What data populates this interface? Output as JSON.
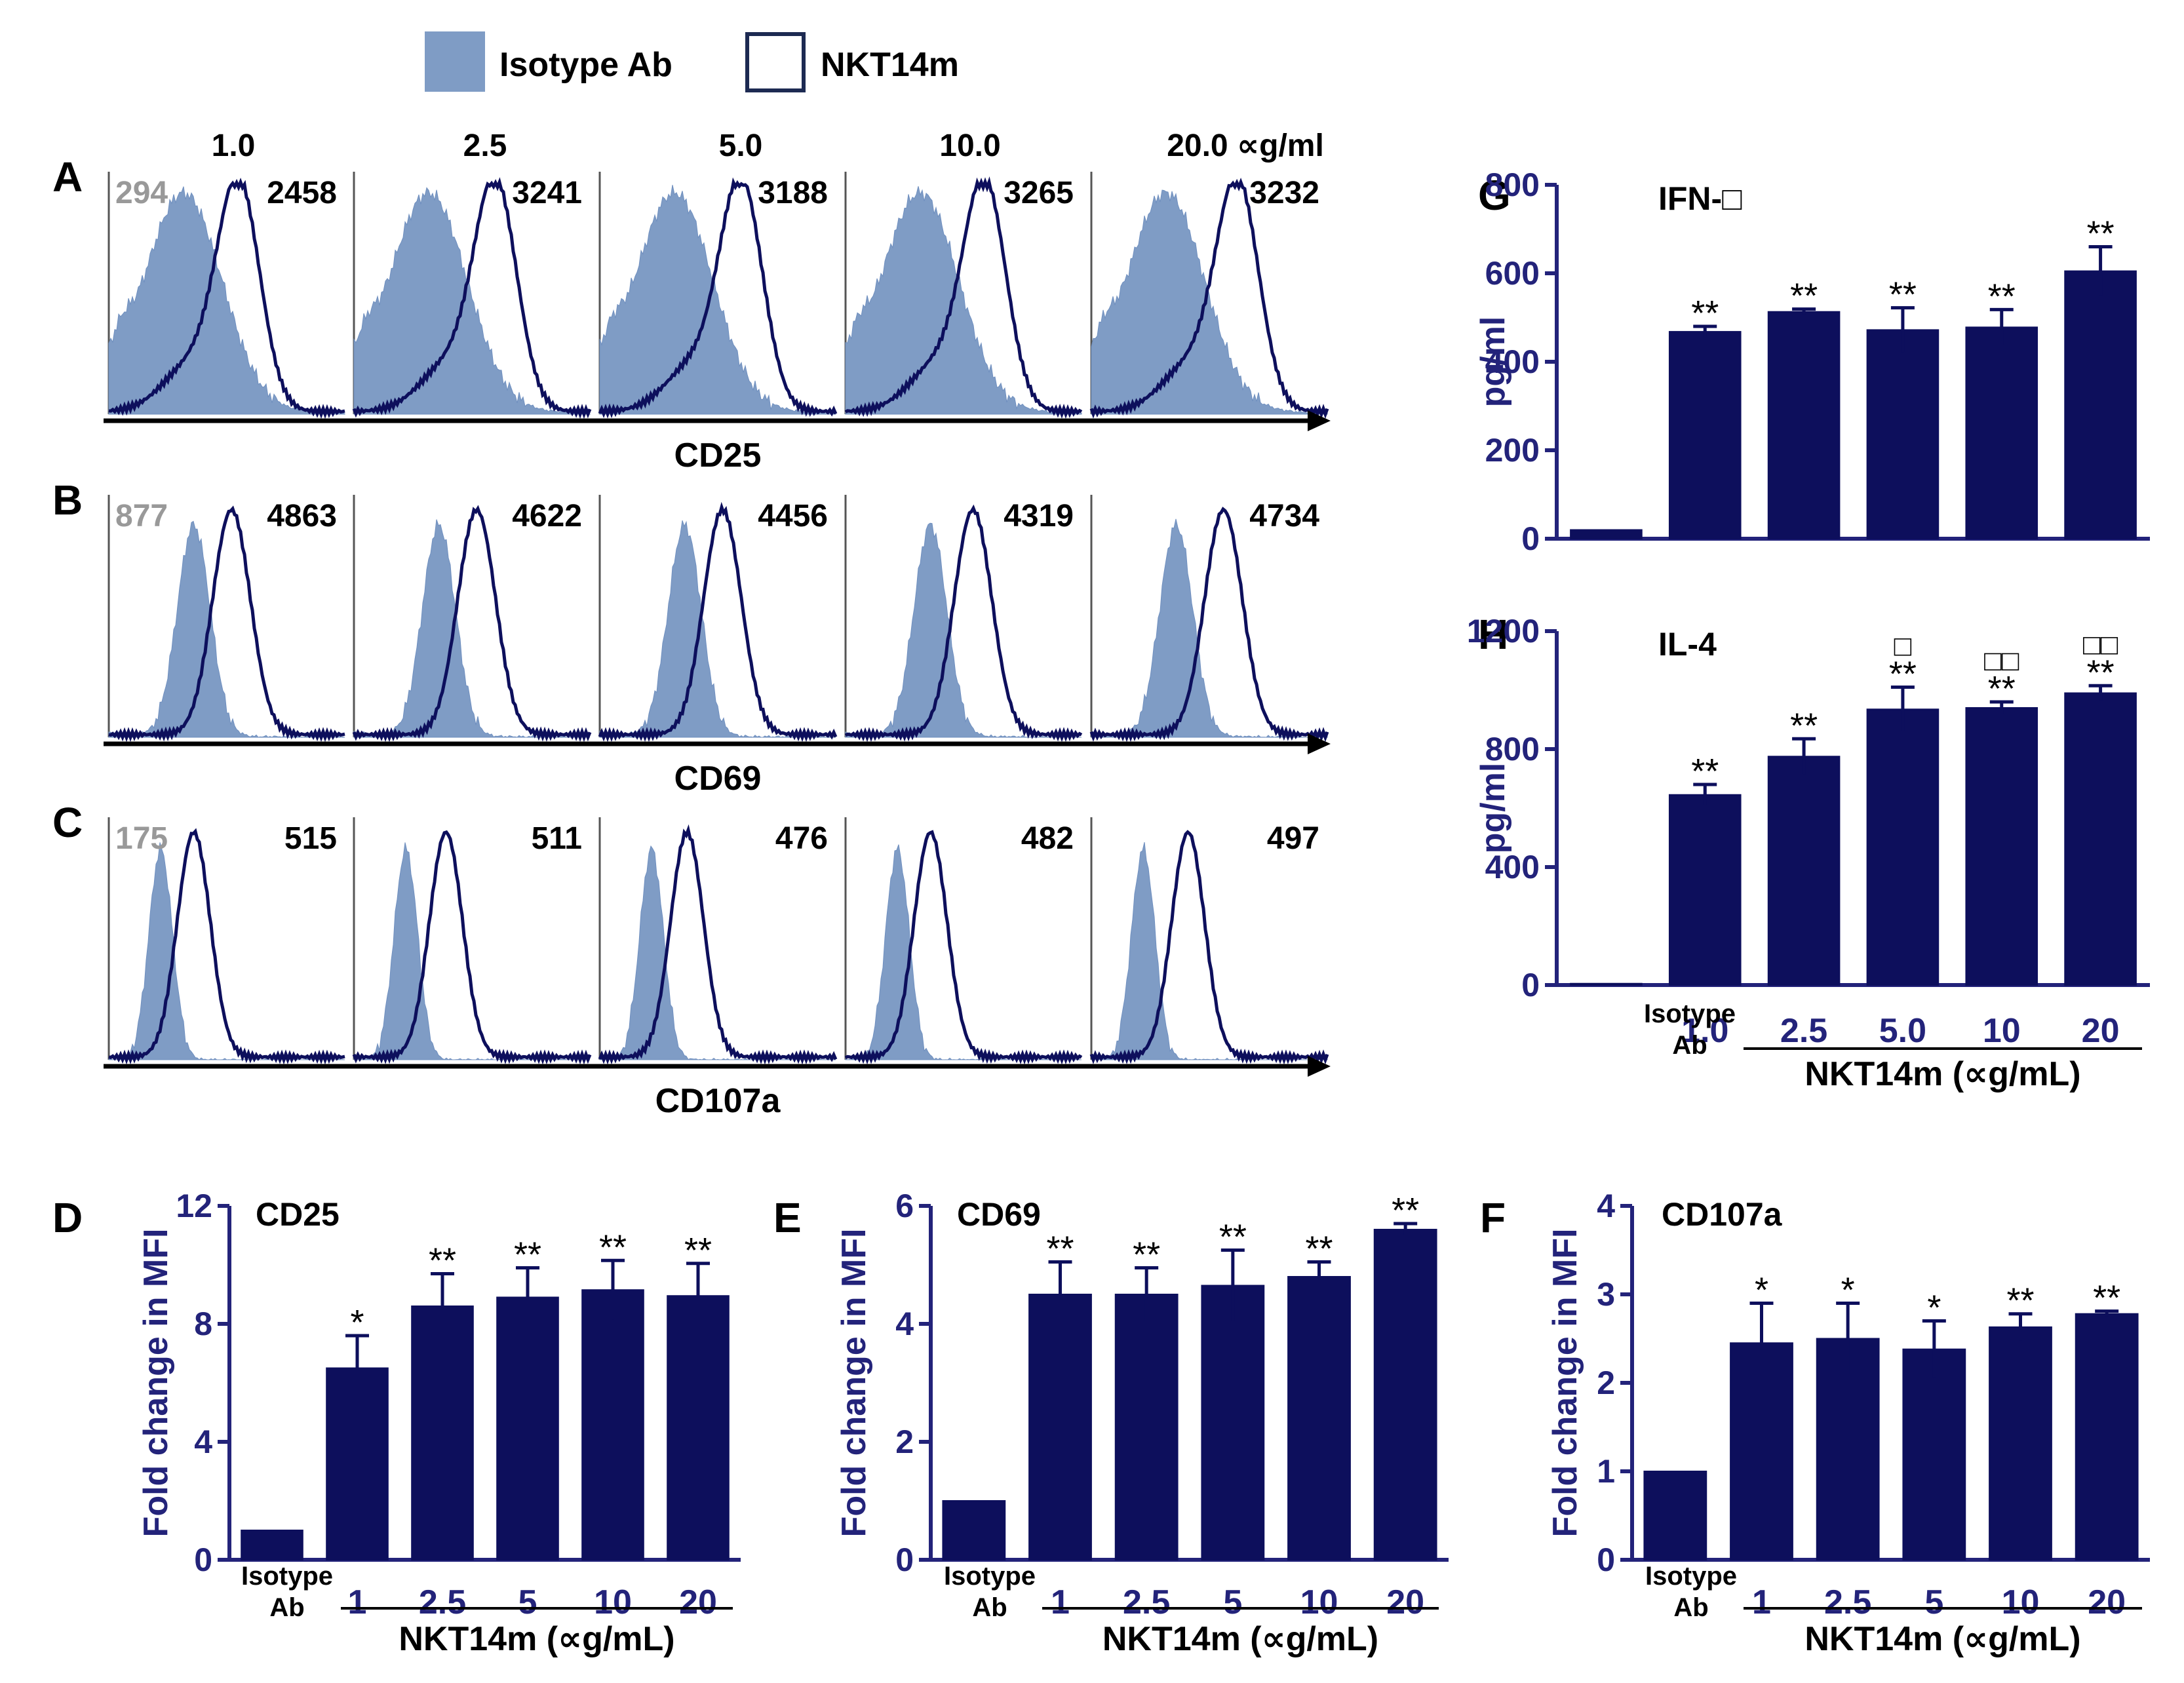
{
  "colors": {
    "navy": "#0d0f5c",
    "isotype_fill": "#7f9cc5",
    "isotype_fill_dark": "#6f8fbf",
    "axis_text": "#23237a",
    "mfi_gray": "#999999",
    "black": "#000000"
  },
  "legend": {
    "isotype_label": "Isotype Ab",
    "nkt_label": "NKT14m"
  },
  "histograms": {
    "column_headers": [
      "1.0",
      "2.5",
      "5.0",
      "10.0",
      "20.0 ∝g/ml"
    ],
    "rows": [
      {
        "panel": "A",
        "marker": "CD25",
        "isotype_mfi": "294",
        "nkt_mfi": [
          "2458",
          "3241",
          "3188",
          "3265",
          "3232"
        ]
      },
      {
        "panel": "B",
        "marker": "CD69",
        "isotype_mfi": "877",
        "nkt_mfi": [
          "4863",
          "4622",
          "4456",
          "4319",
          "4734"
        ]
      },
      {
        "panel": "C",
        "marker": "CD107a",
        "isotype_mfi": "175",
        "nkt_mfi": [
          "515",
          "511",
          "476",
          "482",
          "497"
        ]
      }
    ]
  },
  "chart_data": [
    {
      "panel": "D",
      "type": "bar",
      "title": "CD25",
      "ylabel": "Fold change in MFI",
      "xlabel": "NKT14m (∝g/mL)",
      "control_label": [
        "Isotype",
        "Ab"
      ],
      "categories": [
        "Isotype Ab",
        "1",
        "2.5",
        "5",
        "10",
        "20"
      ],
      "values": [
        1.0,
        6.5,
        8.6,
        8.9,
        9.15,
        8.95
      ],
      "errors": [
        0,
        1.1,
        1.1,
        1.0,
        1.0,
        1.1
      ],
      "significance": [
        "",
        "*",
        "**",
        "**",
        "**",
        "**"
      ],
      "ylim": [
        0,
        12
      ],
      "yticks": [
        "0",
        "4",
        "8",
        "12"
      ]
    },
    {
      "panel": "E",
      "type": "bar",
      "title": "CD69",
      "ylabel": "Fold change in MFI",
      "xlabel": "NKT14m (∝g/mL)",
      "control_label": [
        "Isotype",
        "Ab"
      ],
      "categories": [
        "Isotype Ab",
        "1",
        "2.5",
        "5",
        "10",
        "20"
      ],
      "values": [
        1.0,
        4.5,
        4.5,
        4.65,
        4.8,
        5.6
      ],
      "errors": [
        0,
        0.55,
        0.45,
        0.6,
        0.25,
        0.1
      ],
      "significance": [
        "",
        "**",
        "**",
        "**",
        "**",
        "**"
      ],
      "ylim": [
        0,
        6
      ],
      "yticks": [
        "0",
        "2",
        "4",
        "6"
      ]
    },
    {
      "panel": "F",
      "type": "bar",
      "title": "CD107a",
      "ylabel": "Fold change in MFI",
      "xlabel": "NKT14m (∝g/mL)",
      "control_label": [
        "Isotype",
        "Ab"
      ],
      "categories": [
        "Isotype Ab",
        "1",
        "2.5",
        "5",
        "10",
        "20"
      ],
      "values": [
        1.0,
        2.45,
        2.5,
        2.38,
        2.63,
        2.78
      ],
      "errors": [
        0,
        0.45,
        0.4,
        0.32,
        0.15,
        0.03
      ],
      "significance": [
        "",
        "*",
        "*",
        "*",
        "**",
        "**"
      ],
      "ylim": [
        0,
        4
      ],
      "yticks": [
        "0",
        "1",
        "2",
        "3",
        "4"
      ]
    },
    {
      "panel": "G",
      "type": "bar",
      "title": "IFN-□",
      "ylabel": "pg/ml",
      "xlabel": "",
      "control_label": [],
      "categories": [
        "Isotype Ab",
        "1.0",
        "2.5",
        "5.0",
        "10",
        "20"
      ],
      "values": [
        20,
        468,
        513,
        472,
        478,
        605
      ],
      "errors": [
        0,
        12,
        6,
        50,
        40,
        55
      ],
      "significance": [
        "",
        "**",
        "**",
        "**",
        "**",
        "**"
      ],
      "ylim": [
        0,
        800
      ],
      "yticks": [
        "0",
        "200",
        "400",
        "600",
        "800"
      ]
    },
    {
      "panel": "H",
      "type": "bar",
      "title": "IL-4",
      "ylabel": "pg/ml",
      "xlabel": "NKT14m (∝g/mL)",
      "control_label": [
        "Isotype",
        "Ab"
      ],
      "categories": [
        "Isotype Ab",
        "1.0",
        "2.5",
        "5.0",
        "10",
        "20"
      ],
      "values": [
        5,
        645,
        775,
        935,
        940,
        990
      ],
      "errors": [
        0,
        35,
        60,
        75,
        20,
        25
      ],
      "significance": [
        "",
        "**",
        "**",
        "**",
        "**",
        "**"
      ],
      "extra_marks": [
        "",
        "",
        "",
        "□",
        "□□",
        "□□"
      ],
      "ylim": [
        0,
        1200
      ],
      "yticks": [
        "0",
        "400",
        "800",
        "1200"
      ]
    }
  ]
}
